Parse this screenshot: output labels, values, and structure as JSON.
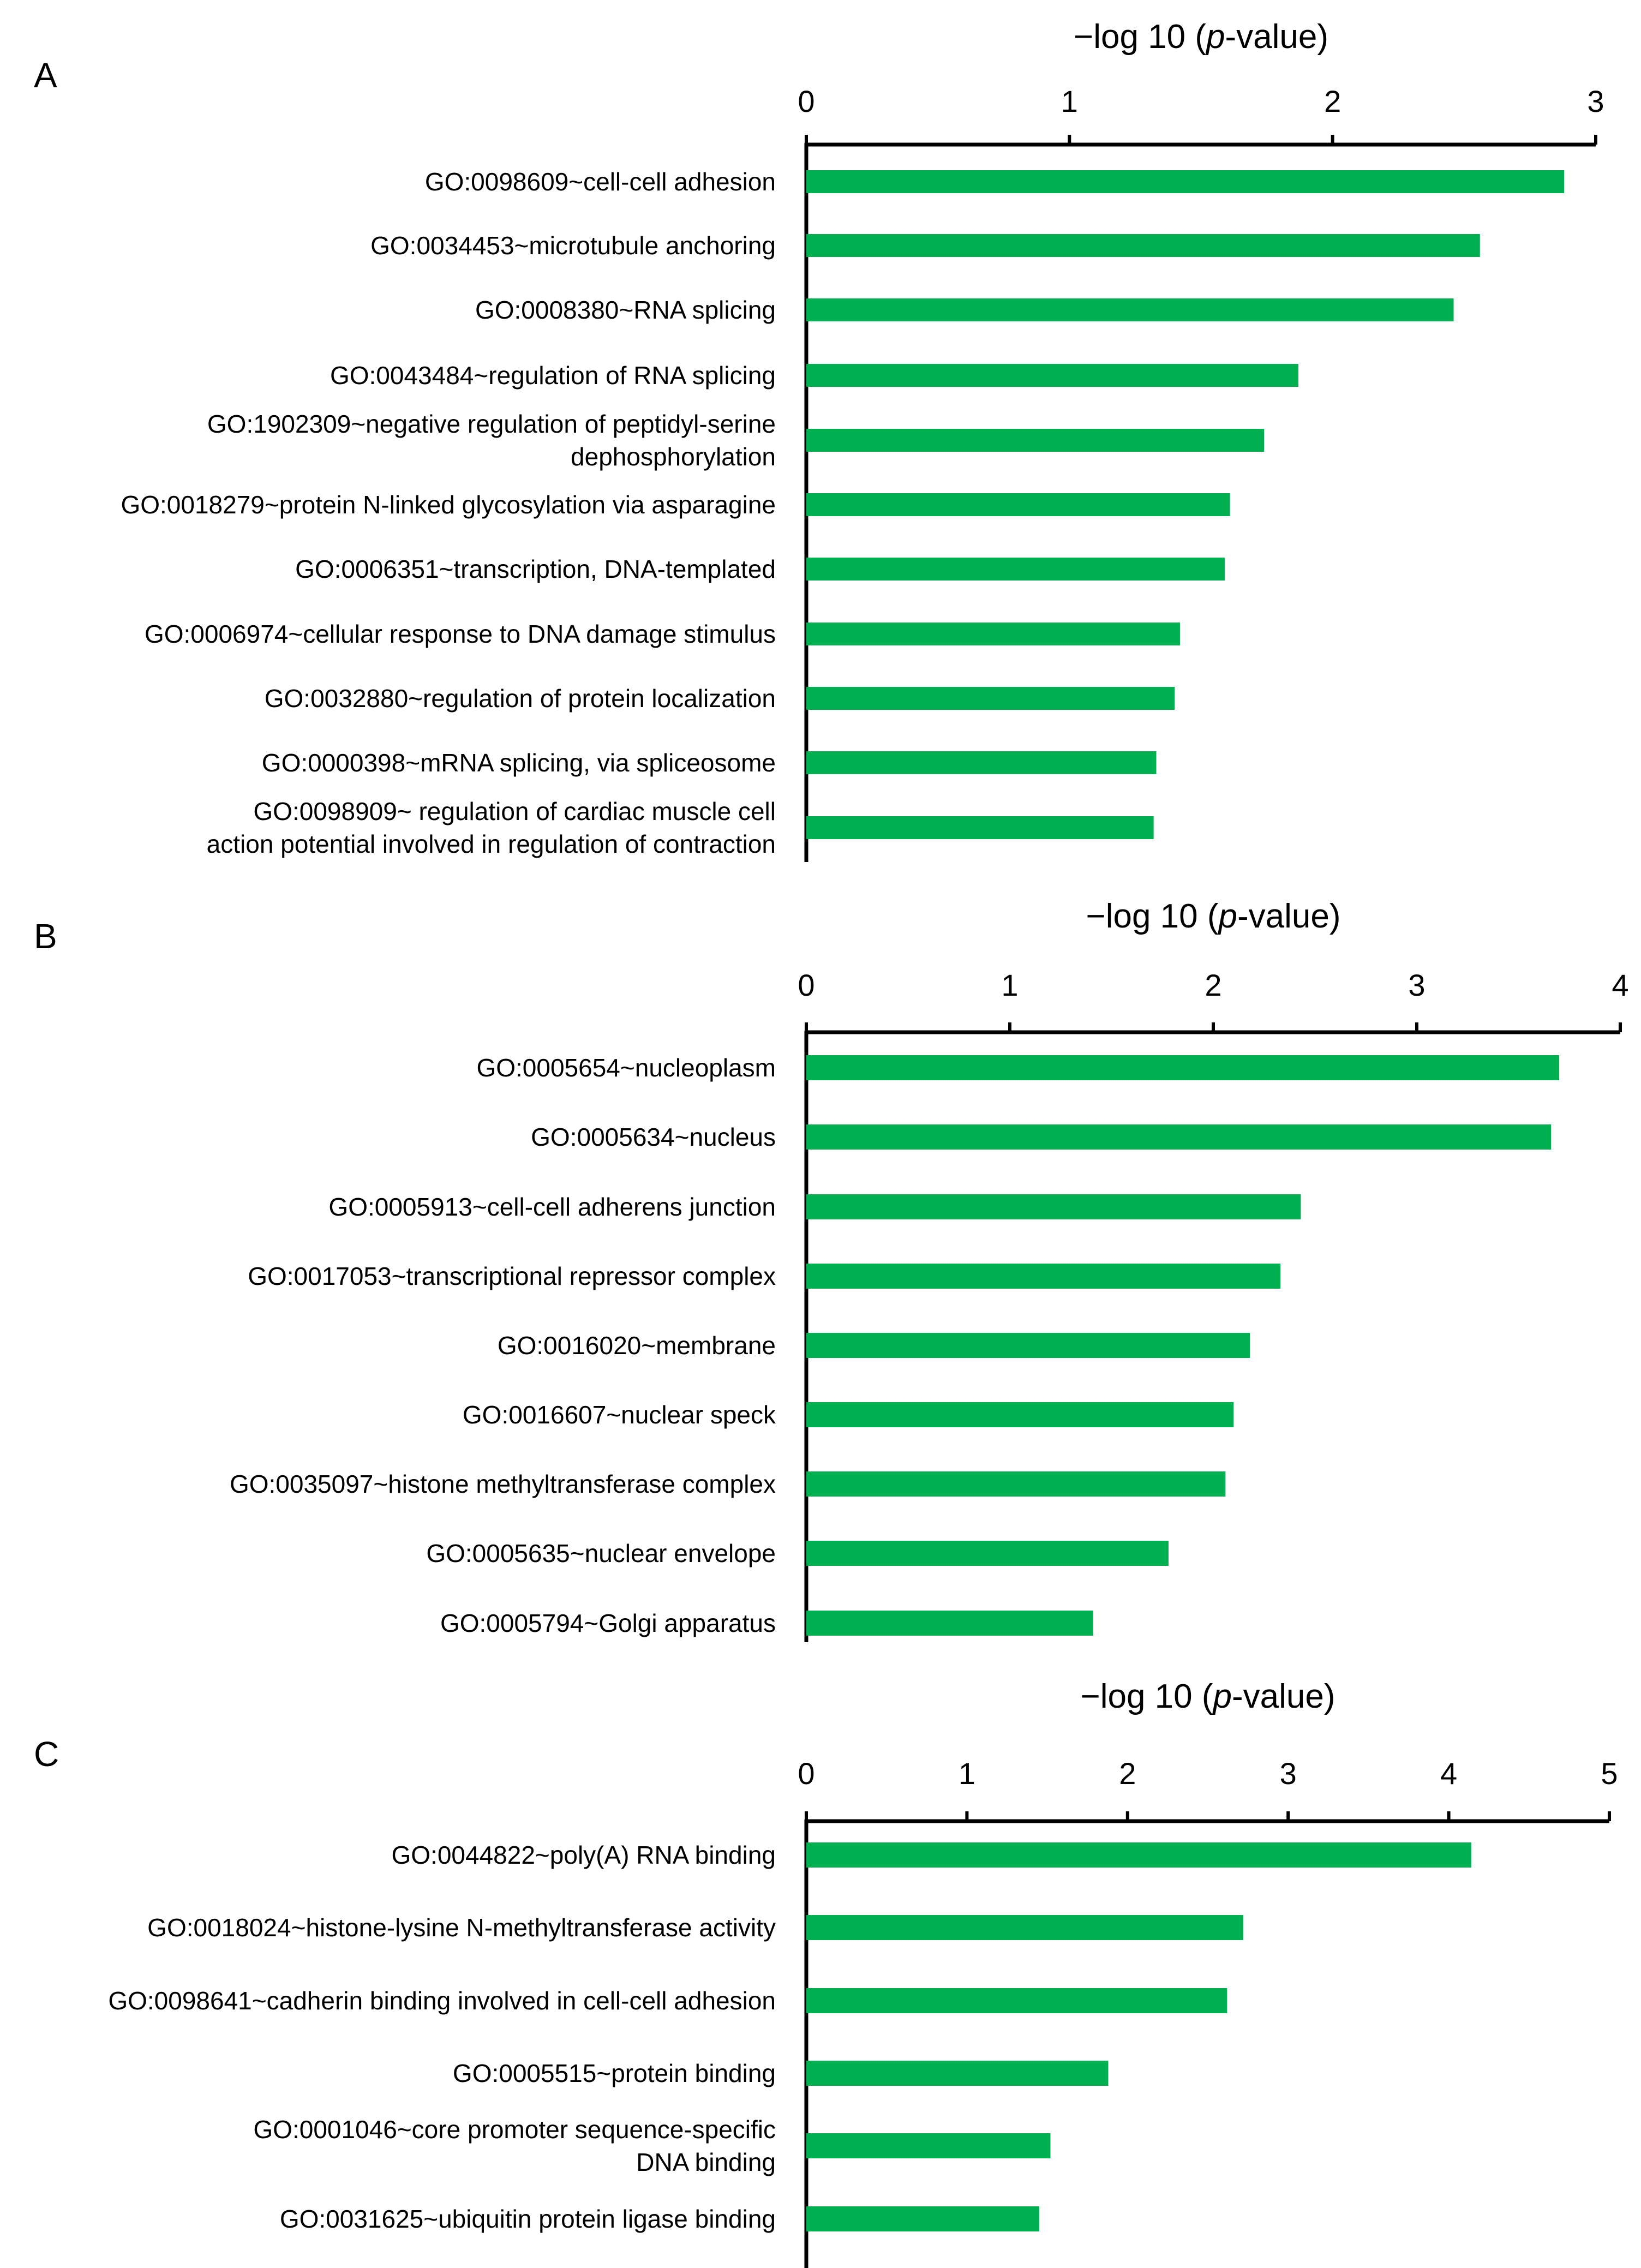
{
  "colors": {
    "bar": "#00b050",
    "axis": "#000000"
  },
  "chart_data": [
    {
      "type": "bar",
      "orientation": "horizontal",
      "panel": "A",
      "title": "",
      "xlabel_prefix": "−log 10 (",
      "xlabel_italic": "p",
      "xlabel_suffix": "-value)",
      "ylabel": "",
      "xlim": [
        0,
        3
      ],
      "ticks": [
        "0",
        "1",
        "2",
        "3"
      ],
      "categories": [
        [
          "GO:0098609~cell-cell adhesion"
        ],
        [
          "GO:0034453~microtubule anchoring"
        ],
        [
          "GO:0008380~RNA splicing"
        ],
        [
          "GO:0043484~regulation of RNA splicing"
        ],
        [
          "GO:1902309~negative regulation of peptidyl-serine",
          "dephosphorylation"
        ],
        [
          "GO:0018279~protein N-linked glycosylation via asparagine"
        ],
        [
          "GO:0006351~transcription, DNA-templated"
        ],
        [
          "GO:0006974~cellular response to DNA damage stimulus"
        ],
        [
          "GO:0032880~regulation of protein localization"
        ],
        [
          "GO:0000398~mRNA splicing, via spliceosome"
        ],
        [
          "GO:0098909~ regulation of cardiac muscle cell",
          "action potential involved in regulation of contraction"
        ]
      ],
      "values": [
        2.88,
        2.56,
        2.46,
        1.87,
        1.74,
        1.61,
        1.59,
        1.42,
        1.4,
        1.33,
        1.32
      ]
    },
    {
      "type": "bar",
      "orientation": "horizontal",
      "panel": "B",
      "title": "",
      "xlabel_prefix": "−log 10 (",
      "xlabel_italic": "p",
      "xlabel_suffix": "-value)",
      "ylabel": "",
      "xlim": [
        0,
        4
      ],
      "ticks": [
        "0",
        "1",
        "2",
        "3",
        "4"
      ],
      "categories": [
        [
          "GO:0005654~nucleoplasm"
        ],
        [
          "GO:0005634~nucleus"
        ],
        [
          "GO:0005913~cell-cell adherens junction"
        ],
        [
          "GO:0017053~transcriptional repressor complex"
        ],
        [
          "GO:0016020~membrane"
        ],
        [
          "GO:0016607~nuclear speck"
        ],
        [
          "GO:0035097~histone methyltransferase complex"
        ],
        [
          "GO:0005635~nuclear envelope"
        ],
        [
          "GO:0005794~Golgi apparatus"
        ]
      ],
      "values": [
        3.7,
        3.66,
        2.43,
        2.33,
        2.18,
        2.1,
        2.06,
        1.78,
        1.41
      ]
    },
    {
      "type": "bar",
      "orientation": "horizontal",
      "panel": "C",
      "title": "",
      "xlabel_prefix": "−log 10 (",
      "xlabel_italic": "p",
      "xlabel_suffix": "-value)",
      "ylabel": "",
      "xlim": [
        0,
        5
      ],
      "ticks": [
        "0",
        "1",
        "2",
        "3",
        "4",
        "5"
      ],
      "categories": [
        [
          "GO:0044822~poly(A) RNA binding"
        ],
        [
          "GO:0018024~histone-lysine N-methyltransferase activity"
        ],
        [
          "GO:0098641~cadherin binding involved in cell-cell adhesion"
        ],
        [
          "GO:0005515~protein binding"
        ],
        [
          "GO:0001046~core promoter sequence-specific",
          "DNA binding"
        ],
        [
          "GO:0031625~ubiquitin protein ligase binding"
        ]
      ],
      "values": [
        4.14,
        2.72,
        2.62,
        1.88,
        1.52,
        1.45
      ]
    }
  ]
}
